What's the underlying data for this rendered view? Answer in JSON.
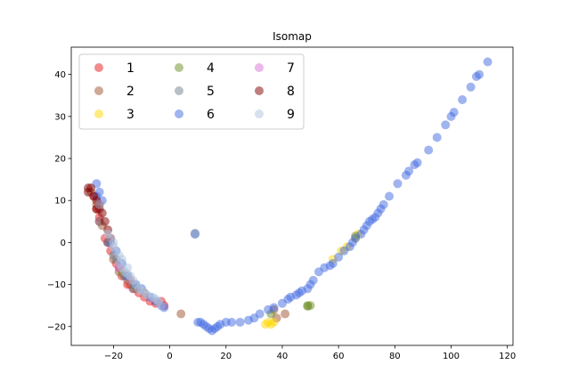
{
  "chart_data": {
    "type": "scatter",
    "title": "Isomap",
    "xlabel": "",
    "ylabel": "",
    "xlim": [
      -35,
      122
    ],
    "ylim": [
      -24.5,
      46.5
    ],
    "x_ticks": [
      -20,
      0,
      20,
      40,
      60,
      80,
      100,
      120
    ],
    "y_ticks": [
      -20,
      -10,
      0,
      10,
      20,
      30,
      40
    ],
    "x_tick_labels": [
      "−20",
      "0",
      "20",
      "40",
      "60",
      "80",
      "100",
      "120"
    ],
    "y_tick_labels": [
      "−20",
      "−10",
      "0",
      "10",
      "20",
      "30",
      "40"
    ],
    "legend_position": "upper-left",
    "legend_columns": 3,
    "point_alpha": 0.5,
    "series": [
      {
        "name": "1",
        "color": "#e31a1c",
        "points": [
          [
            -27,
            11
          ],
          [
            -26,
            8
          ],
          [
            -25,
            5
          ],
          [
            -23,
            1
          ],
          [
            -21,
            -2
          ],
          [
            -19,
            -5
          ],
          [
            -17,
            -8
          ],
          [
            -15,
            -10
          ],
          [
            -13,
            -11
          ],
          [
            -11,
            -12
          ],
          [
            -9,
            -13
          ],
          [
            -7,
            -14
          ],
          [
            -5,
            -14.5
          ],
          [
            -3,
            -14
          ],
          [
            -2,
            -15
          ],
          [
            -25,
            6
          ],
          [
            -22,
            0
          ],
          [
            -18,
            -6
          ],
          [
            -14,
            -10
          ]
        ]
      },
      {
        "name": "2",
        "color": "#a0522d",
        "points": [
          [
            -28,
            12
          ],
          [
            -26,
            9
          ],
          [
            -24,
            4
          ],
          [
            -22,
            0
          ],
          [
            -20,
            -4
          ],
          [
            -18,
            -7
          ],
          [
            -15,
            -9
          ],
          [
            -12,
            -11
          ],
          [
            -9,
            -12
          ],
          [
            4,
            -17
          ],
          [
            38,
            -18
          ],
          [
            41,
            -17
          ],
          [
            37,
            -16
          ],
          [
            -16,
            -8
          ]
        ]
      },
      {
        "name": "3",
        "color": "#ffd700",
        "points": [
          [
            35,
            -19
          ],
          [
            36,
            -19.5
          ],
          [
            37,
            -19
          ],
          [
            34,
            -19.5
          ],
          [
            66,
            1
          ],
          [
            63,
            -1
          ],
          [
            58,
            -4
          ],
          [
            67,
            2
          ],
          [
            61,
            -2
          ]
        ]
      },
      {
        "name": "4",
        "color": "#6b8e23",
        "points": [
          [
            49,
            -15
          ],
          [
            49,
            -15.2
          ],
          [
            50,
            -15
          ],
          [
            36,
            -17
          ],
          [
            -17,
            -7
          ],
          [
            -15,
            -8
          ],
          [
            -13,
            -10
          ],
          [
            66,
            1.5
          ],
          [
            -14,
            -9
          ]
        ]
      },
      {
        "name": "5",
        "color": "#708090",
        "points": [
          [
            -25,
            5
          ],
          [
            -22,
            0
          ],
          [
            -19,
            -4
          ],
          [
            -16,
            -8
          ],
          [
            -13,
            -11
          ],
          [
            9,
            2
          ],
          [
            9,
            2.2
          ],
          [
            -20,
            -3
          ]
        ]
      },
      {
        "name": "6",
        "color": "#4169e1",
        "points": [
          [
            113,
            43
          ],
          [
            110,
            40
          ],
          [
            109,
            39.5
          ],
          [
            107,
            37
          ],
          [
            104,
            34
          ],
          [
            101,
            31
          ],
          [
            100,
            30
          ],
          [
            98,
            28
          ],
          [
            95,
            25
          ],
          [
            92,
            22
          ],
          [
            88,
            19
          ],
          [
            87,
            18.5
          ],
          [
            85,
            17
          ],
          [
            84,
            16
          ],
          [
            81,
            14
          ],
          [
            78,
            11
          ],
          [
            76,
            9
          ],
          [
            75,
            8
          ],
          [
            74,
            7
          ],
          [
            73,
            6
          ],
          [
            72,
            5.5
          ],
          [
            71,
            5
          ],
          [
            70,
            4
          ],
          [
            69,
            3
          ],
          [
            68,
            2
          ],
          [
            66,
            1
          ],
          [
            65,
            0
          ],
          [
            64,
            -1
          ],
          [
            62,
            -2
          ],
          [
            60,
            -3.5
          ],
          [
            58,
            -5
          ],
          [
            57,
            -5.5
          ],
          [
            55,
            -6
          ],
          [
            53,
            -7
          ],
          [
            51,
            -9
          ],
          [
            50,
            -10
          ],
          [
            49,
            -11
          ],
          [
            47,
            -11.5
          ],
          [
            46,
            -12
          ],
          [
            45,
            -12.5
          ],
          [
            43,
            -13
          ],
          [
            42,
            -13.5
          ],
          [
            40,
            -14.5
          ],
          [
            37,
            -15.5
          ],
          [
            35,
            -16
          ],
          [
            32,
            -17
          ],
          [
            30,
            -18
          ],
          [
            28,
            -18.5
          ],
          [
            25,
            -19
          ],
          [
            22,
            -19
          ],
          [
            20,
            -19
          ],
          [
            18,
            -19.5
          ],
          [
            17,
            -20
          ],
          [
            16,
            -20.5
          ],
          [
            15,
            -21
          ],
          [
            14,
            -20.5
          ],
          [
            13,
            -20
          ],
          [
            12,
            -19.5
          ],
          [
            11,
            -19
          ],
          [
            10,
            -19
          ],
          [
            -26,
            14
          ],
          [
            -25,
            12
          ],
          [
            -24,
            10
          ],
          [
            -26,
            11
          ],
          [
            -21,
            0
          ],
          [
            -19,
            -2
          ],
          [
            -17,
            -5
          ],
          [
            -15,
            -8
          ],
          [
            -12,
            -10
          ],
          [
            -10,
            -11
          ],
          [
            -7,
            -13
          ],
          [
            -5,
            -14
          ],
          [
            -3,
            -15
          ],
          [
            -2,
            -15.5
          ],
          [
            9,
            2
          ]
        ]
      },
      {
        "name": "7",
        "color": "#da70d6",
        "points": [
          [
            -18,
            -6
          ],
          [
            -14,
            -9
          ]
        ]
      },
      {
        "name": "8",
        "color": "#800000",
        "points": [
          [
            -29,
            13
          ],
          [
            -28,
            13
          ],
          [
            -29,
            12
          ],
          [
            -27,
            11
          ],
          [
            -26,
            10
          ],
          [
            -25,
            8
          ],
          [
            -24,
            7
          ],
          [
            -26,
            8
          ],
          [
            -23,
            5
          ],
          [
            -22,
            3
          ],
          [
            -21,
            1
          ],
          [
            -25,
            9
          ]
        ]
      },
      {
        "name": "9",
        "color": "#b0c4de",
        "points": [
          [
            -25,
            9
          ],
          [
            -22,
            2
          ],
          [
            -21,
            1
          ],
          [
            -20,
            0
          ],
          [
            -19,
            -2
          ],
          [
            -18,
            -3
          ],
          [
            -18,
            -5
          ],
          [
            -17,
            -6
          ],
          [
            -16,
            -7
          ],
          [
            -15,
            -7.5
          ],
          [
            -14,
            -8
          ],
          [
            -13,
            -9
          ],
          [
            -12,
            -10
          ],
          [
            -11,
            -11
          ],
          [
            -10,
            -11.5
          ],
          [
            -9,
            -12
          ],
          [
            -8,
            -12.5
          ],
          [
            -6,
            -13
          ],
          [
            -5,
            -13.5
          ],
          [
            -4,
            -14
          ],
          [
            -3,
            -15
          ],
          [
            9,
            2
          ],
          [
            -20,
            -1
          ],
          [
            -17,
            -4
          ],
          [
            -15,
            -6
          ]
        ]
      }
    ]
  }
}
